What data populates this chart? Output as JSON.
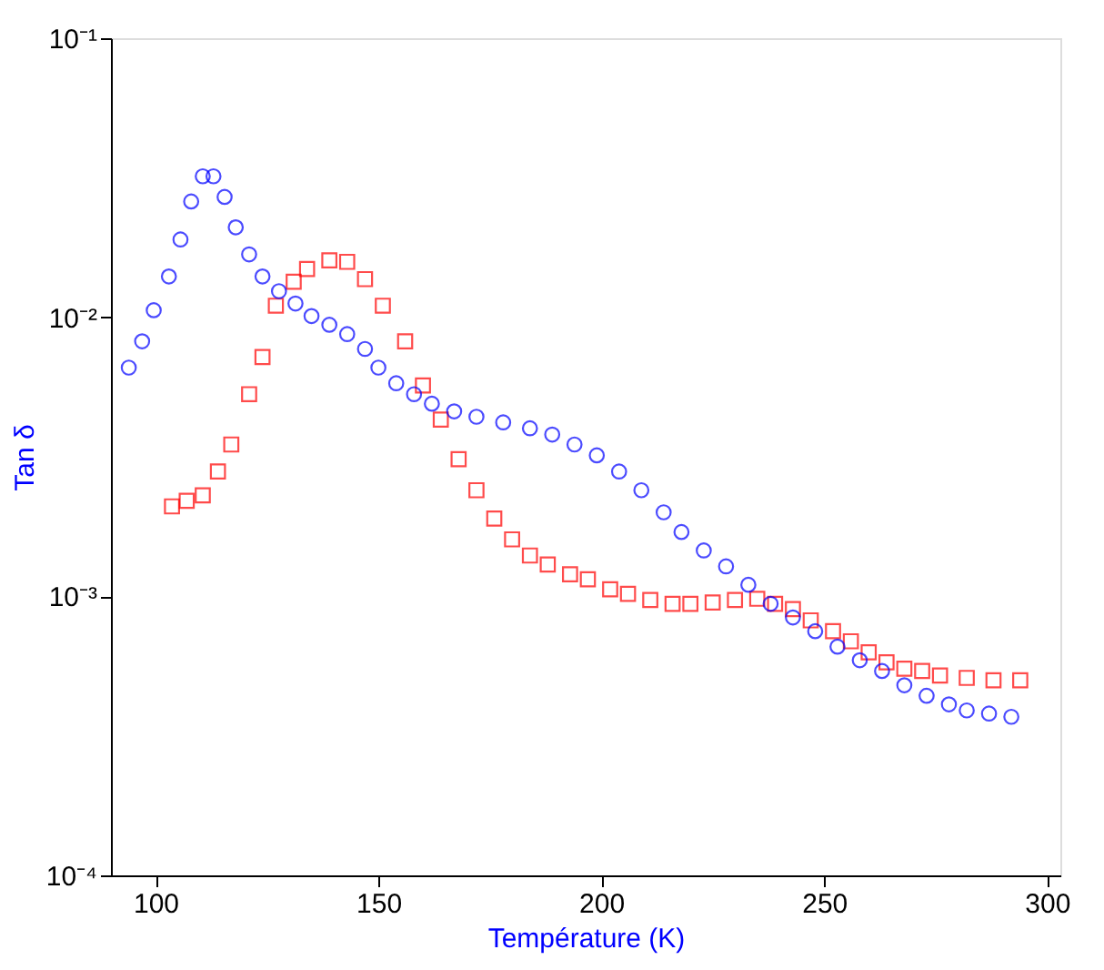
{
  "chart_data": {
    "type": "scatter",
    "xlabel": "Température (K)",
    "ylabel": "Tan δ",
    "xlim": [
      90,
      303
    ],
    "xticks": [
      100,
      150,
      200,
      250,
      300
    ],
    "ylim": [
      0.0001,
      0.1
    ],
    "log": true,
    "yticks": [
      {
        "value": 0.0001,
        "label": "10⁻⁴"
      },
      {
        "value": 0.001,
        "label": "10⁻³"
      },
      {
        "value": 0.01,
        "label": "10⁻²"
      },
      {
        "value": 0.1,
        "label": "10⁻¹"
      }
    ],
    "grid": false,
    "series": [
      {
        "color": "#ff0000",
        "marker": "square",
        "x": [
          103.7,
          107,
          110.6,
          114,
          117,
          121,
          124,
          127,
          131,
          134,
          139,
          143,
          147,
          151,
          156,
          160,
          164,
          168,
          172,
          176,
          180,
          184,
          188,
          193,
          197,
          202,
          206,
          211,
          216,
          220,
          225,
          230,
          235,
          239,
          243,
          247,
          252,
          256,
          260,
          264,
          268,
          272,
          276,
          282,
          288,
          294
        ],
        "values": [
          0.0021,
          0.0022,
          0.0023,
          0.0028,
          0.0035,
          0.0053,
          0.0072,
          0.011,
          0.0134,
          0.0149,
          0.016,
          0.0158,
          0.0137,
          0.011,
          0.0082,
          0.0057,
          0.0043,
          0.0031,
          0.0024,
          0.0019,
          0.0016,
          0.0014,
          0.0013,
          0.0012,
          0.00115,
          0.00106,
          0.00102,
          0.00097,
          0.00094,
          0.00094,
          0.00095,
          0.00097,
          0.00098,
          0.00094,
          0.0009,
          0.00082,
          0.00075,
          0.00069,
          0.00063,
          0.00058,
          0.00055,
          0.00054,
          0.00052,
          0.00051,
          0.0005,
          0.0005
        ]
      },
      {
        "color": "#0000ff",
        "marker": "circle",
        "x": [
          94,
          97,
          99.6,
          103,
          105.6,
          108,
          110.6,
          113,
          115.5,
          118,
          121,
          124,
          127.7,
          131.4,
          135,
          139,
          143,
          147,
          150,
          154,
          158,
          162,
          167,
          172,
          178,
          184,
          189,
          194,
          199,
          204,
          209,
          214,
          218,
          223,
          228,
          233,
          238,
          243,
          248,
          253,
          258,
          263,
          268,
          273,
          278,
          282,
          287,
          292
        ],
        "values": [
          0.0066,
          0.0082,
          0.0106,
          0.014,
          0.019,
          0.026,
          0.032,
          0.032,
          0.027,
          0.021,
          0.0168,
          0.014,
          0.0124,
          0.0112,
          0.0101,
          0.0094,
          0.0087,
          0.0077,
          0.0066,
          0.0058,
          0.0053,
          0.0049,
          0.0046,
          0.0044,
          0.0042,
          0.004,
          0.0038,
          0.0035,
          0.0032,
          0.0028,
          0.0024,
          0.002,
          0.0017,
          0.00146,
          0.00128,
          0.0011,
          0.00094,
          0.00084,
          0.00075,
          0.00066,
          0.00059,
          0.00054,
          0.00048,
          0.00044,
          0.00041,
          0.00039,
          0.00038,
          0.00037
        ]
      }
    ]
  }
}
